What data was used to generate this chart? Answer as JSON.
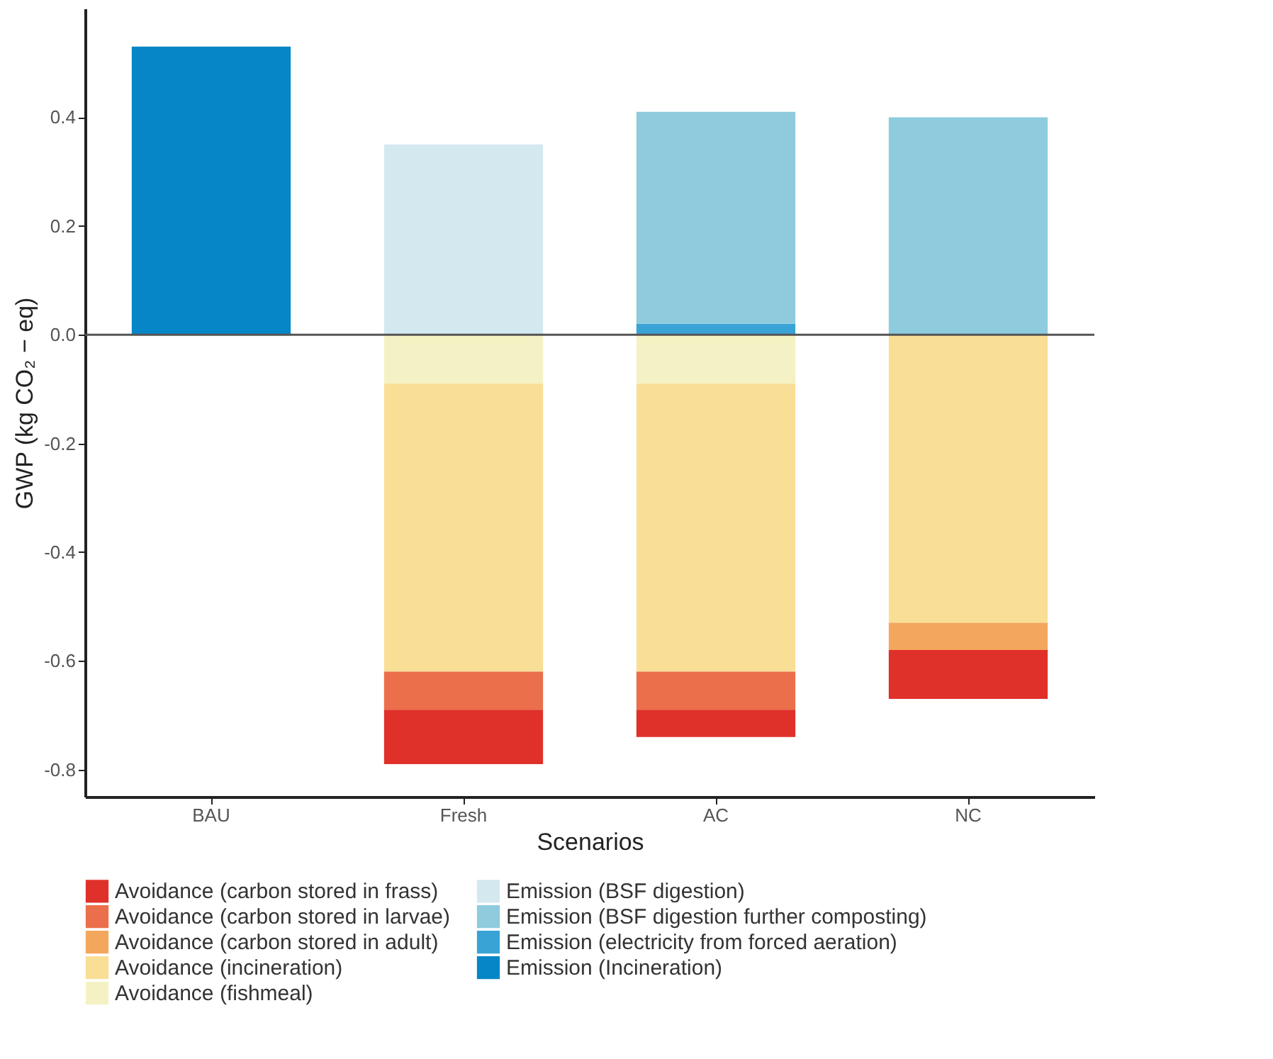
{
  "chart_data": {
    "type": "bar",
    "stacked": true,
    "xlabel": "Scenarios",
    "ylabel": "GWP (kg CO₂ − eq)",
    "categories": [
      "BAU",
      "Fresh",
      "AC",
      "NC"
    ],
    "series": [
      {
        "name": "Emission (Incineration)",
        "color": "#0686c6",
        "values": [
          0.53,
          null,
          null,
          null
        ]
      },
      {
        "name": "Emission (electricity from forced aeration)",
        "color": "#3aa3d6",
        "values": [
          null,
          null,
          0.02,
          null
        ]
      },
      {
        "name": "Emission (BSF digestion further composting)",
        "color": "#8ecbdd",
        "values": [
          null,
          null,
          0.39,
          0.4
        ]
      },
      {
        "name": "Emission (BSF digestion)",
        "color": "#d4e9ef",
        "values": [
          null,
          0.35,
          null,
          null
        ]
      },
      {
        "name": "Avoidance (fishmeal)",
        "color": "#f4f2c4",
        "values": [
          null,
          -0.09,
          -0.09,
          null
        ]
      },
      {
        "name": "Avoidance (incineration)",
        "color": "#f9df96",
        "values": [
          null,
          -0.53,
          -0.53,
          -0.53
        ]
      },
      {
        "name": "Avoidance (carbon stored in adult)",
        "color": "#f3a75d",
        "values": [
          null,
          null,
          null,
          -0.05
        ]
      },
      {
        "name": "Avoidance (carbon stored in larvae)",
        "color": "#eb6f4a",
        "values": [
          null,
          -0.07,
          -0.07,
          null
        ]
      },
      {
        "name": "Avoidance (carbon stored in frass)",
        "color": "#e0302a",
        "values": [
          null,
          -0.1,
          -0.05,
          -0.09
        ]
      }
    ],
    "ylim": [
      -0.85,
      0.6
    ],
    "yticks": [
      -0.8,
      -0.6,
      -0.4,
      -0.2,
      {
        "value": 0,
        "label": "0.0"
      },
      0.2,
      0.4
    ],
    "ref_lines": [
      {
        "axis": "y",
        "value": 0,
        "color": "#555555"
      }
    ],
    "legend": "bottom",
    "grid": false
  }
}
